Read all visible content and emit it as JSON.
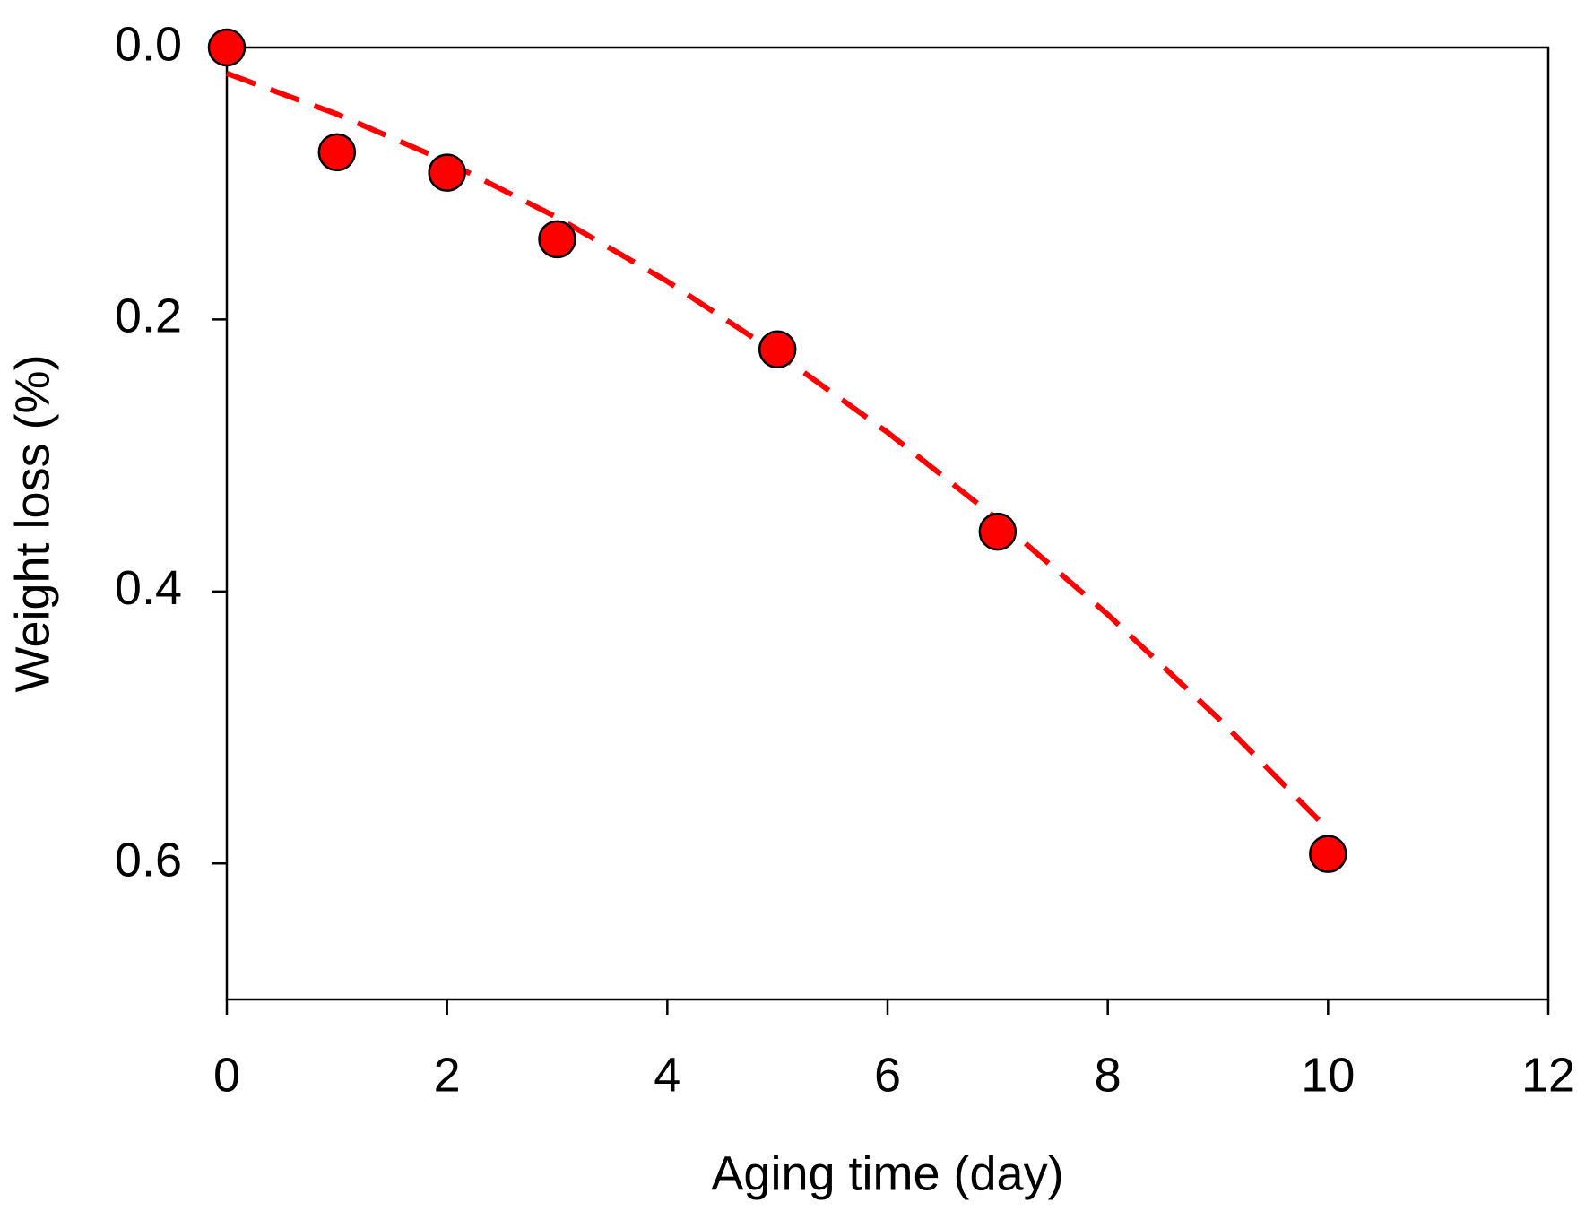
{
  "chart_data": {
    "type": "scatter",
    "xlabel": "Aging time (day)",
    "ylabel": "Weight loss (%)",
    "xlim": [
      0,
      12
    ],
    "xticks": [
      0,
      2,
      4,
      6,
      8,
      10,
      12
    ],
    "ylim": [
      0,
      0.7
    ],
    "y_inverted": true,
    "yticks": [
      {
        "value": 0,
        "label": "0.0"
      },
      {
        "value": 0.2,
        "label": "0.2"
      },
      {
        "value": 0.4,
        "label": "0.4"
      },
      {
        "value": 0.6,
        "label": "0.6"
      }
    ],
    "grid": false,
    "series": [
      {
        "color": "#ff0000",
        "style": "markers",
        "x": [
          0,
          1,
          2,
          3,
          5,
          7,
          10
        ],
        "values": [
          0,
          0.077,
          0.092,
          0.141,
          0.222,
          0.356,
          0.593
        ]
      },
      {
        "color": "#ff0000",
        "style": "dashed",
        "x": [
          0,
          1,
          2,
          3,
          4,
          5,
          6,
          7,
          8,
          9,
          10
        ],
        "values": [
          0.019,
          0.049,
          0.084,
          0.125,
          0.172,
          0.225,
          0.283,
          0.347,
          0.417,
          0.493,
          0.575
        ]
      }
    ]
  }
}
